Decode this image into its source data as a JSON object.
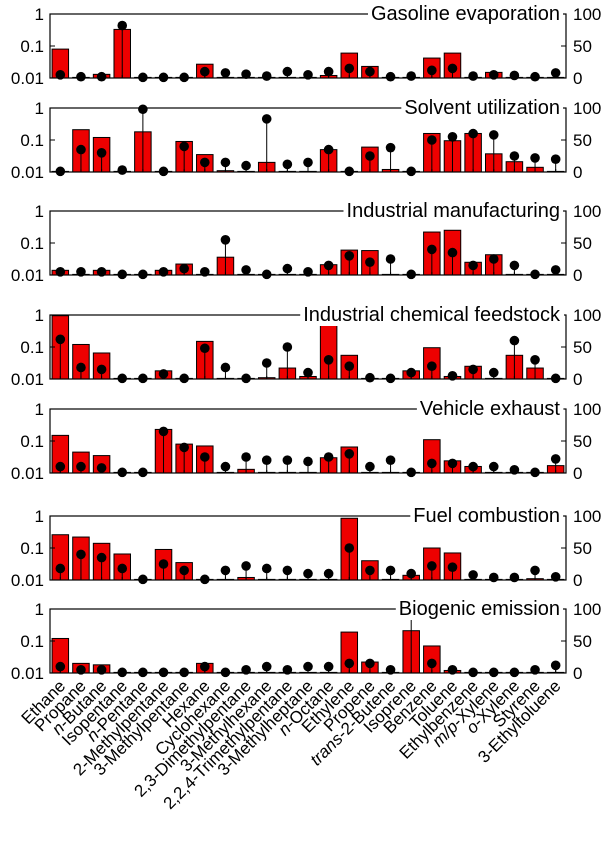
{
  "chart_data": {
    "type": "bar",
    "left_axis": {
      "scale": "log",
      "ylim": [
        0.01,
        1
      ],
      "tick_labels": [
        "1",
        "0.1",
        "0.01"
      ]
    },
    "right_axis": {
      "scale": "linear",
      "ylim": [
        0,
        100
      ],
      "tick_labels": [
        "100",
        "50",
        "0"
      ]
    },
    "colors": {
      "bar_fill": "#ee0000",
      "bar_stroke": "#000000",
      "marker": "#000000"
    },
    "categories": [
      {
        "text": "Ethane"
      },
      {
        "text": "Propane"
      },
      {
        "prefix": "n",
        "text": "-Butane"
      },
      {
        "text": "Isopentane"
      },
      {
        "prefix": "n",
        "text": "-Pentane"
      },
      {
        "text": "2-Methylpentane"
      },
      {
        "text": "3-Methylpentane"
      },
      {
        "text": "Hexane"
      },
      {
        "text": "Cyclohexane"
      },
      {
        "text": "2,3-Dimethylpentane"
      },
      {
        "text": "3-Methylhexane"
      },
      {
        "text": "2,2,4-Trimethylpentane"
      },
      {
        "text": "3-Methylheptane"
      },
      {
        "prefix": "n",
        "text": "-Octane"
      },
      {
        "text": "Ethylene"
      },
      {
        "text": "Propene"
      },
      {
        "prefix": "trans",
        "text": "-2-Butene"
      },
      {
        "text": "Isoprene"
      },
      {
        "text": "Benzene"
      },
      {
        "text": "Toluene"
      },
      {
        "text": "Ethylbenzene"
      },
      {
        "prefix": "m/p",
        "text": "-Xylene"
      },
      {
        "prefix": "o",
        "text": "-Xylene"
      },
      {
        "text": "Styrene"
      },
      {
        "text": "3-Ethyltoluene"
      }
    ],
    "panels": [
      {
        "title": "Gasoline evaporation",
        "bars": [
          0.08,
          0.01,
          0.013,
          0.33,
          0.01,
          0.01,
          0.01,
          0.027,
          0.01,
          0.01,
          0.01,
          0.01,
          0.01,
          0.012,
          0.06,
          0.023,
          0.01,
          0.01,
          0.042,
          0.06,
          0.01,
          0.015,
          0.01,
          0.01,
          0.01
        ],
        "markers": [
          5,
          2,
          2,
          82,
          1,
          1,
          1,
          10,
          8,
          6,
          3,
          10,
          5,
          10,
          15,
          10,
          2,
          3,
          12,
          15,
          3,
          5,
          4,
          2,
          8
        ]
      },
      {
        "title": "Solvent utilization",
        "bars": [
          0.01,
          0.21,
          0.12,
          0.01,
          0.18,
          0.01,
          0.09,
          0.035,
          0.011,
          0.01,
          0.02,
          0.01,
          0.01,
          0.05,
          0.01,
          0.06,
          0.012,
          0.01,
          0.16,
          0.095,
          0.16,
          0.037,
          0.021,
          0.014,
          0.01
        ],
        "markers": [
          1,
          35,
          30,
          3,
          98,
          1,
          40,
          15,
          15,
          10,
          83,
          12,
          15,
          35,
          1,
          25,
          38,
          1,
          50,
          55,
          60,
          58,
          25,
          22,
          20
        ]
      },
      {
        "title": "Industrial manufacturing",
        "bars": [
          0.014,
          0.01,
          0.014,
          0.01,
          0.01,
          0.014,
          0.022,
          0.01,
          0.036,
          0.01,
          0.01,
          0.01,
          0.01,
          0.021,
          0.06,
          0.058,
          0.01,
          0.01,
          0.22,
          0.25,
          0.025,
          0.043,
          0.01,
          0.01,
          0.01
        ],
        "markers": [
          5,
          5,
          5,
          1,
          1,
          5,
          10,
          5,
          55,
          8,
          1,
          10,
          5,
          15,
          30,
          20,
          25,
          1,
          40,
          35,
          15,
          25,
          15,
          1,
          8
        ]
      },
      {
        "title": "Industrial chemical feedstock",
        "bars": [
          0.95,
          0.12,
          0.065,
          0.01,
          0.01,
          0.018,
          0.01,
          0.15,
          0.01,
          0.01,
          0.011,
          0.022,
          0.012,
          0.5,
          0.055,
          0.01,
          0.01,
          0.018,
          0.095,
          0.012,
          0.025,
          0.01,
          0.055,
          0.022,
          0.01
        ],
        "markers": [
          62,
          18,
          15,
          1,
          1,
          8,
          1,
          48,
          18,
          1,
          25,
          50,
          10,
          30,
          20,
          2,
          1,
          10,
          20,
          5,
          15,
          10,
          60,
          30,
          1
        ]
      },
      {
        "title": "Vehicle exhaust",
        "bars": [
          0.15,
          0.045,
          0.035,
          0.01,
          0.01,
          0.23,
          0.08,
          0.07,
          0.01,
          0.013,
          0.01,
          0.01,
          0.01,
          0.03,
          0.065,
          0.01,
          0.01,
          0.01,
          0.11,
          0.024,
          0.016,
          0.01,
          0.01,
          0.01,
          0.017
        ],
        "markers": [
          10,
          10,
          8,
          1,
          1,
          65,
          40,
          25,
          10,
          25,
          20,
          20,
          18,
          25,
          30,
          10,
          20,
          1,
          15,
          15,
          10,
          10,
          5,
          1,
          22
        ]
      },
      {
        "title": "Fuel combustion",
        "bars": [
          0.26,
          0.22,
          0.14,
          0.065,
          0.01,
          0.09,
          0.035,
          0.01,
          0.01,
          0.012,
          0.01,
          0.01,
          0.01,
          0.01,
          0.85,
          0.04,
          0.01,
          0.014,
          0.1,
          0.07,
          0.01,
          0.01,
          0.01,
          0.011,
          0.01
        ],
        "markers": [
          18,
          40,
          35,
          18,
          1,
          25,
          15,
          1,
          15,
          22,
          18,
          15,
          10,
          10,
          50,
          15,
          15,
          10,
          22,
          20,
          8,
          4,
          4,
          15,
          5
        ]
      },
      {
        "title": "Biogenic emission",
        "bars": [
          0.12,
          0.02,
          0.018,
          0.01,
          0.01,
          0.01,
          0.01,
          0.02,
          0.01,
          0.01,
          0.01,
          0.01,
          0.01,
          0.01,
          0.19,
          0.022,
          0.01,
          0.21,
          0.07,
          0.012,
          0.01,
          0.01,
          0.01,
          0.01,
          0.01
        ],
        "markers": [
          10,
          5,
          5,
          1,
          1,
          1,
          1,
          10,
          1,
          5,
          10,
          5,
          10,
          10,
          15,
          15,
          5,
          95,
          15,
          5,
          1,
          1,
          1,
          5,
          12
        ]
      }
    ]
  }
}
